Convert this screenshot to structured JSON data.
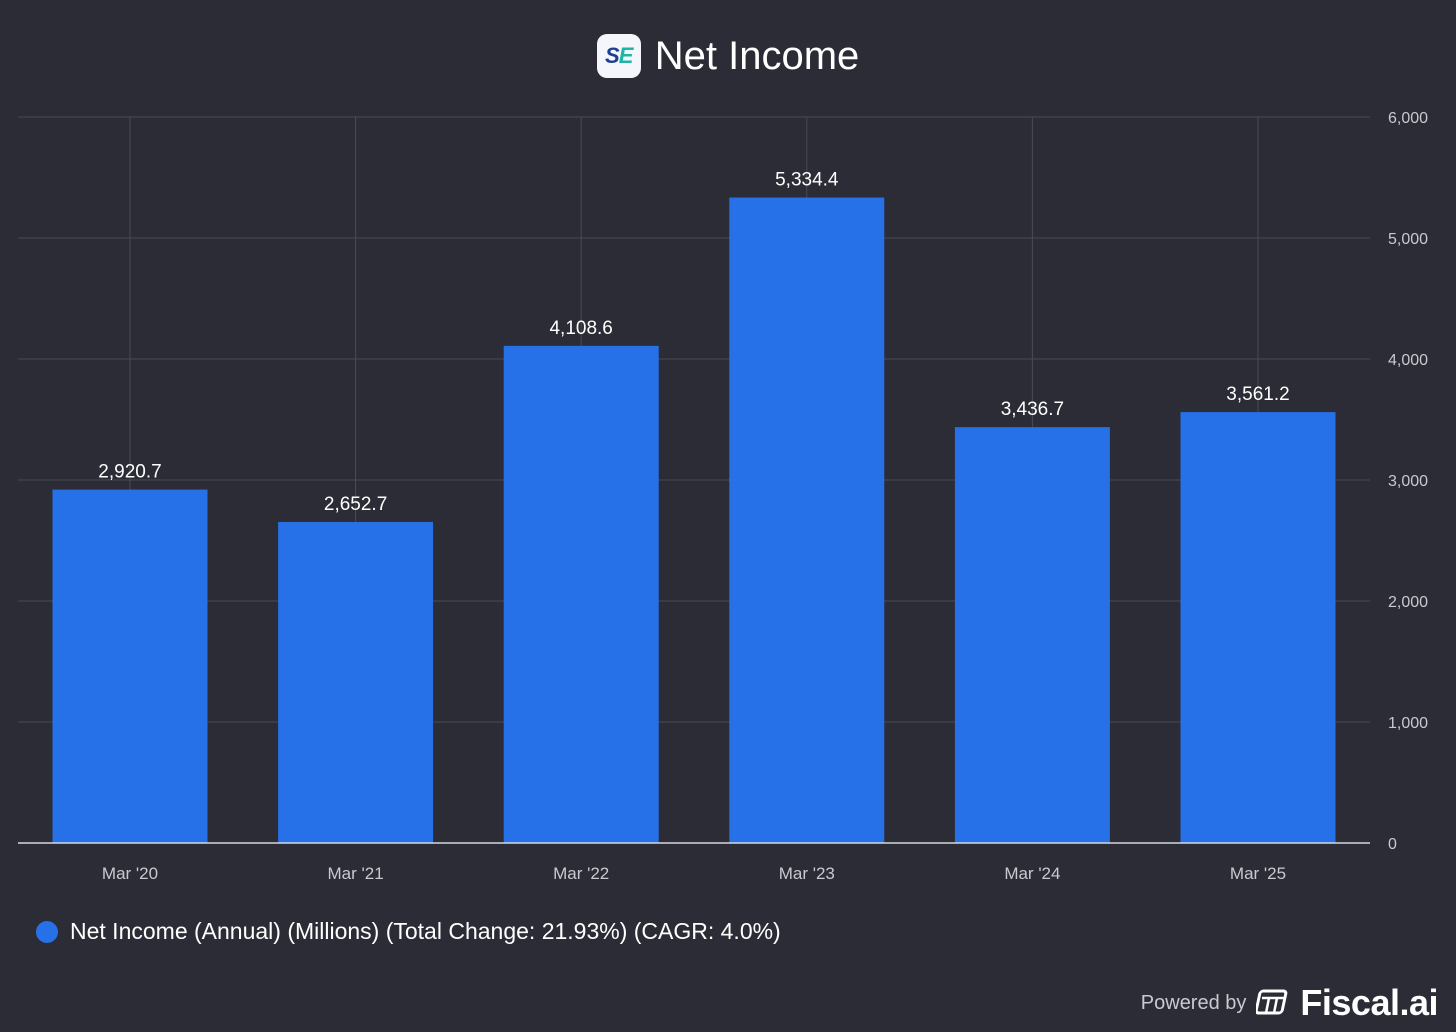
{
  "header": {
    "logo_text_1": "S",
    "logo_text_2": "E",
    "title": "Net Income"
  },
  "chart_data": {
    "type": "bar",
    "title": "Net Income",
    "categories": [
      "Mar '20",
      "Mar '21",
      "Mar '22",
      "Mar '23",
      "Mar '24",
      "Mar '25"
    ],
    "values": [
      2920.7,
      2652.7,
      4108.6,
      5334.4,
      3436.7,
      3561.2
    ],
    "value_labels": [
      "2,920.7",
      "2,652.7",
      "4,108.6",
      "5,334.4",
      "3,436.7",
      "3,561.2"
    ],
    "ylim": [
      0,
      6000
    ],
    "yticks": [
      0,
      1000,
      2000,
      3000,
      4000,
      5000,
      6000
    ],
    "ytick_labels": [
      "0",
      "1,000",
      "2,000",
      "3,000",
      "4,000",
      "5,000",
      "6,000"
    ],
    "y_axis_side": "right",
    "grid": true,
    "bar_color": "#2771e8",
    "series": [
      {
        "name": "Net Income (Annual) (Millions) (Total Change: 21.93%) (CAGR: 4.0%)",
        "values": [
          2920.7,
          2652.7,
          4108.6,
          5334.4,
          3436.7,
          3561.2
        ]
      }
    ],
    "legend_position": "bottom-left"
  },
  "legend": {
    "label": "Net Income (Annual) (Millions) (Total Change: 21.93%) (CAGR: 4.0%)",
    "color": "#2771e8"
  },
  "footer": {
    "powered_by": "Powered by",
    "brand": "Fiscal.ai"
  },
  "colors": {
    "background": "#2b2c35",
    "grid": "#4a4b55",
    "axis_text": "#c9cad0",
    "label_text": "#ffffff"
  }
}
